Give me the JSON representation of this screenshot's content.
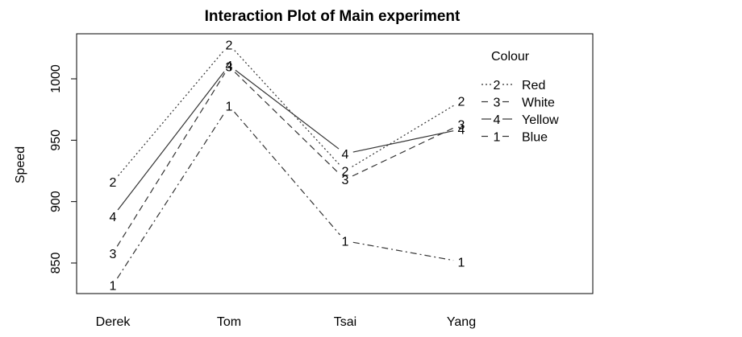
{
  "chart_data": {
    "type": "line",
    "title": "Interaction Plot of Main experiment",
    "xlabel": "",
    "ylabel": "Speed",
    "categories": [
      "Derek",
      "Tom",
      "Tsai",
      "Yang"
    ],
    "yticks": [
      850,
      900,
      950,
      1000
    ],
    "ylim": [
      825,
      1040
    ],
    "grid": false,
    "legend": {
      "title": "Colour",
      "position": "top-right"
    },
    "series": [
      {
        "name": "Red",
        "symbol": "2",
        "linestyle": "dotted",
        "values": [
          916,
          1028,
          925,
          982
        ]
      },
      {
        "name": "White",
        "symbol": "3",
        "linestyle": "dashed",
        "values": [
          858,
          1010,
          918,
          963
        ]
      },
      {
        "name": "Yellow",
        "symbol": "4",
        "linestyle": "solid",
        "values": [
          888,
          1011,
          939,
          959
        ]
      },
      {
        "name": "Blue",
        "symbol": "1",
        "linestyle": "dashdot",
        "values": [
          832,
          978,
          868,
          851
        ]
      }
    ]
  }
}
